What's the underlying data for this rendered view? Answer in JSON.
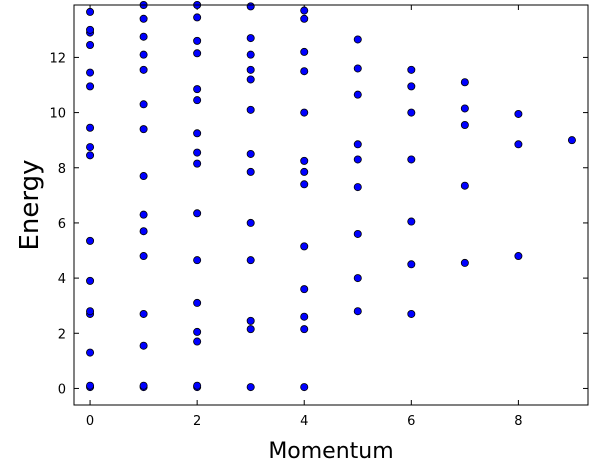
{
  "chart_data": {
    "type": "scatter",
    "title": "",
    "xlabel": "Momentum",
    "ylabel": "Energy",
    "xlim": [
      -0.3,
      9.3
    ],
    "ylim": [
      -0.6,
      13.9
    ],
    "xticks": [
      0,
      2,
      4,
      6,
      8
    ],
    "yticks": [
      0,
      2,
      4,
      6,
      8,
      10,
      12
    ],
    "grid": false,
    "marker_color": "#0000ff",
    "marker_edge_color": "#000000",
    "points": [
      {
        "x": 0,
        "y": 0.05
      },
      {
        "x": 0,
        "y": 0.1
      },
      {
        "x": 0,
        "y": 1.3
      },
      {
        "x": 0,
        "y": 2.7
      },
      {
        "x": 0,
        "y": 2.8
      },
      {
        "x": 0,
        "y": 3.9
      },
      {
        "x": 0,
        "y": 5.35
      },
      {
        "x": 0,
        "y": 8.45
      },
      {
        "x": 0,
        "y": 8.75
      },
      {
        "x": 0,
        "y": 9.45
      },
      {
        "x": 0,
        "y": 10.95
      },
      {
        "x": 0,
        "y": 11.45
      },
      {
        "x": 0,
        "y": 12.45
      },
      {
        "x": 0,
        "y": 12.9
      },
      {
        "x": 0,
        "y": 13.0
      },
      {
        "x": 0,
        "y": 13.65
      },
      {
        "x": 1,
        "y": 0.05
      },
      {
        "x": 1,
        "y": 0.1
      },
      {
        "x": 1,
        "y": 1.55
      },
      {
        "x": 1,
        "y": 2.7
      },
      {
        "x": 1,
        "y": 4.8
      },
      {
        "x": 1,
        "y": 5.7
      },
      {
        "x": 1,
        "y": 6.3
      },
      {
        "x": 1,
        "y": 7.7
      },
      {
        "x": 1,
        "y": 9.4
      },
      {
        "x": 1,
        "y": 10.3
      },
      {
        "x": 1,
        "y": 11.55
      },
      {
        "x": 1,
        "y": 12.1
      },
      {
        "x": 1,
        "y": 12.75
      },
      {
        "x": 1,
        "y": 13.4
      },
      {
        "x": 1,
        "y": 13.9
      },
      {
        "x": 2,
        "y": 0.05
      },
      {
        "x": 2,
        "y": 0.1
      },
      {
        "x": 2,
        "y": 1.7
      },
      {
        "x": 2,
        "y": 2.05
      },
      {
        "x": 2,
        "y": 3.1
      },
      {
        "x": 2,
        "y": 4.65
      },
      {
        "x": 2,
        "y": 6.35
      },
      {
        "x": 2,
        "y": 8.15
      },
      {
        "x": 2,
        "y": 8.55
      },
      {
        "x": 2,
        "y": 9.25
      },
      {
        "x": 2,
        "y": 10.45
      },
      {
        "x": 2,
        "y": 10.85
      },
      {
        "x": 2,
        "y": 12.15
      },
      {
        "x": 2,
        "y": 12.6
      },
      {
        "x": 2,
        "y": 13.45
      },
      {
        "x": 2,
        "y": 13.9
      },
      {
        "x": 3,
        "y": 0.05
      },
      {
        "x": 3,
        "y": 2.15
      },
      {
        "x": 3,
        "y": 2.45
      },
      {
        "x": 3,
        "y": 4.65
      },
      {
        "x": 3,
        "y": 6.0
      },
      {
        "x": 3,
        "y": 7.85
      },
      {
        "x": 3,
        "y": 8.5
      },
      {
        "x": 3,
        "y": 10.1
      },
      {
        "x": 3,
        "y": 11.2
      },
      {
        "x": 3,
        "y": 11.55
      },
      {
        "x": 3,
        "y": 12.1
      },
      {
        "x": 3,
        "y": 12.7
      },
      {
        "x": 3,
        "y": 13.85
      },
      {
        "x": 4,
        "y": 0.05
      },
      {
        "x": 4,
        "y": 2.15
      },
      {
        "x": 4,
        "y": 2.6
      },
      {
        "x": 4,
        "y": 3.6
      },
      {
        "x": 4,
        "y": 5.15
      },
      {
        "x": 4,
        "y": 7.4
      },
      {
        "x": 4,
        "y": 7.85
      },
      {
        "x": 4,
        "y": 8.25
      },
      {
        "x": 4,
        "y": 10.0
      },
      {
        "x": 4,
        "y": 11.5
      },
      {
        "x": 4,
        "y": 12.2
      },
      {
        "x": 4,
        "y": 13.4
      },
      {
        "x": 4,
        "y": 13.7
      },
      {
        "x": 5,
        "y": 2.8
      },
      {
        "x": 5,
        "y": 4.0
      },
      {
        "x": 5,
        "y": 5.6
      },
      {
        "x": 5,
        "y": 7.3
      },
      {
        "x": 5,
        "y": 8.3
      },
      {
        "x": 5,
        "y": 8.85
      },
      {
        "x": 5,
        "y": 10.65
      },
      {
        "x": 5,
        "y": 11.6
      },
      {
        "x": 5,
        "y": 12.65
      },
      {
        "x": 6,
        "y": 2.7
      },
      {
        "x": 6,
        "y": 4.5
      },
      {
        "x": 6,
        "y": 6.05
      },
      {
        "x": 6,
        "y": 8.3
      },
      {
        "x": 6,
        "y": 10.0
      },
      {
        "x": 6,
        "y": 10.95
      },
      {
        "x": 6,
        "y": 11.55
      },
      {
        "x": 7,
        "y": 4.55
      },
      {
        "x": 7,
        "y": 7.35
      },
      {
        "x": 7,
        "y": 9.55
      },
      {
        "x": 7,
        "y": 10.15
      },
      {
        "x": 7,
        "y": 11.1
      },
      {
        "x": 8,
        "y": 4.8
      },
      {
        "x": 8,
        "y": 8.85
      },
      {
        "x": 8,
        "y": 9.95
      },
      {
        "x": 9,
        "y": 9.0
      }
    ]
  }
}
